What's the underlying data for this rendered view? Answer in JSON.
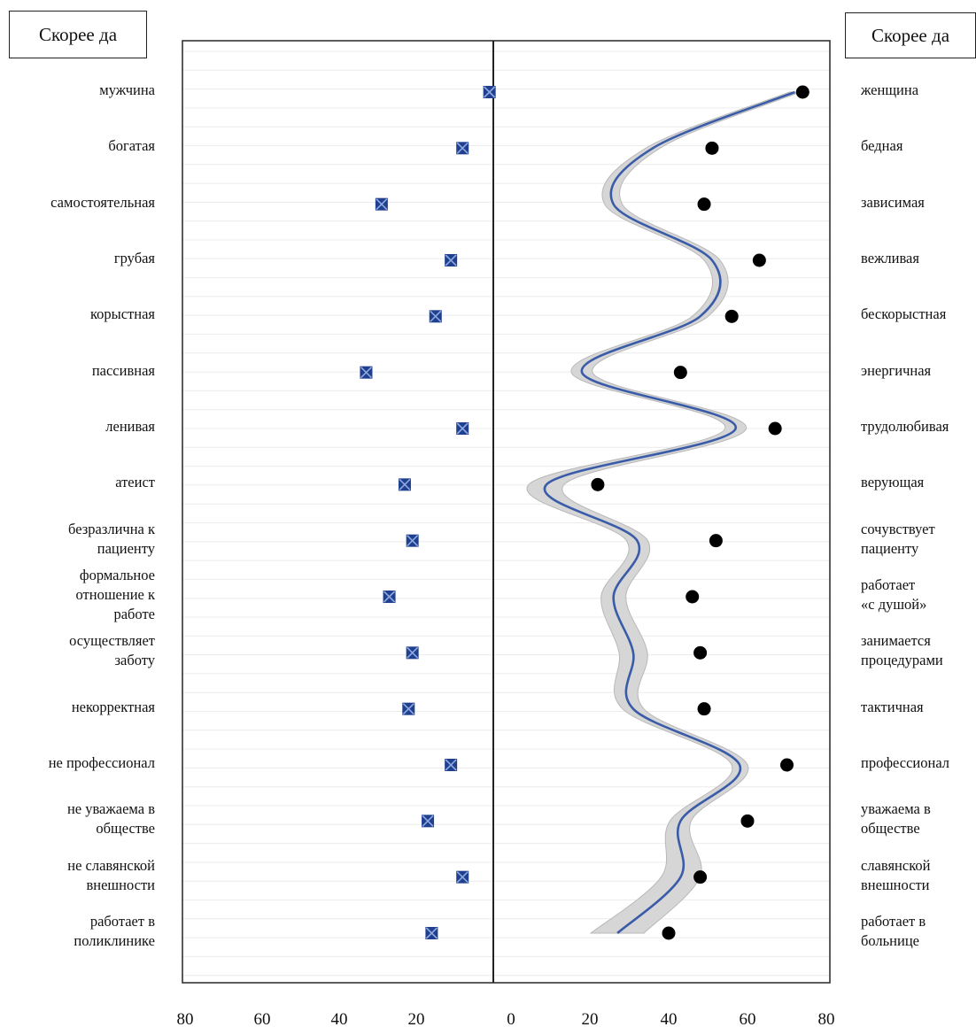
{
  "header": {
    "left_box": "Скорее да",
    "right_box": "Скорее да"
  },
  "chart_data": {
    "type": "scatter",
    "layout": "diverging",
    "x_ticks_left": [
      "80",
      "60",
      "40",
      "20"
    ],
    "x_ticks_right": [
      "0",
      "20",
      "40",
      "60",
      "80"
    ],
    "xlim_left": [
      0,
      80
    ],
    "xlim_right": [
      0,
      80
    ],
    "grid": true,
    "items": [
      {
        "left": "мужчина",
        "right": "женщина",
        "left_value": 1,
        "right_value": 74
      },
      {
        "left": "богатая",
        "right": "бедная",
        "left_value": 8,
        "right_value": 51
      },
      {
        "left": "самостоятельная",
        "right": "зависимая",
        "left_value": 29,
        "right_value": 49
      },
      {
        "left": "грубая",
        "right": "вежливая",
        "left_value": 11,
        "right_value": 63
      },
      {
        "left": "корыстная",
        "right": "бескорыстная",
        "left_value": 15,
        "right_value": 56
      },
      {
        "left": "пассивная",
        "right": "энергичная",
        "left_value": 33,
        "right_value": 43
      },
      {
        "left": "ленивая",
        "right": "трудолюбивая",
        "left_value": 8,
        "right_value": 67
      },
      {
        "left": "атеист",
        "right": "верующая",
        "left_value": 23,
        "right_value": 22
      },
      {
        "left": "безразлична к\nпациенту",
        "right": "сочувствует\nпациенту",
        "left_value": 21,
        "right_value": 52
      },
      {
        "left": "формальное\nотношение к\nработе",
        "right": "работает\n«с душой»",
        "left_value": 27,
        "right_value": 46
      },
      {
        "left": "осуществляет\nзаботу",
        "right": "занимается\nпроцедурами",
        "left_value": 21,
        "right_value": 48
      },
      {
        "left": "некорректная",
        "right": "тактичная",
        "left_value": 22,
        "right_value": 49
      },
      {
        "left": "не профессионал",
        "right": "профессионал",
        "left_value": 11,
        "right_value": 70
      },
      {
        "left": "не уважаема в\nобществе",
        "right": "уважаема в\nобществе",
        "left_value": 17,
        "right_value": 60
      },
      {
        "left": "не славянской\nвнешности",
        "right": "славянской\nвнешности",
        "left_value": 8,
        "right_value": 48
      },
      {
        "left": "работает в\nполиклинике",
        "right": "работает в\nбольнице",
        "left_value": 16,
        "right_value": 40
      }
    ],
    "trend_right": [
      72,
      36,
      26,
      51,
      48,
      18,
      57,
      9,
      32,
      26,
      31,
      31,
      58,
      43,
      43,
      27
    ],
    "colors": {
      "left_marker": "#1f3f8f",
      "right_marker": "#000000",
      "trend": "#3a5ca8",
      "band": "#d6d6d6"
    }
  }
}
